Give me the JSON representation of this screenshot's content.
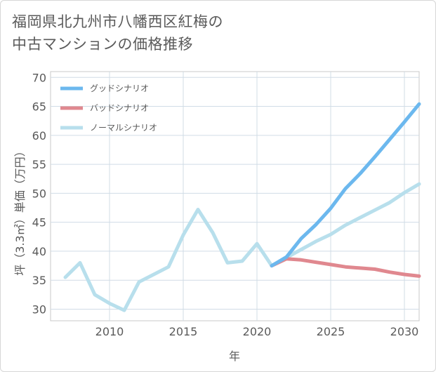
{
  "chart_data": {
    "type": "line",
    "title_lines": [
      "福岡県北九州市八幡西区紅梅の",
      "中古マンションの価格推移"
    ],
    "xlabel": "年",
    "ylabel": "坪（3.3㎡）単価（万円）",
    "xlim": [
      2006,
      2031
    ],
    "ylim": [
      28,
      71
    ],
    "xticks": [
      2010,
      2015,
      2020,
      2025,
      2030
    ],
    "yticks": [
      30,
      35,
      40,
      45,
      50,
      55,
      60,
      65,
      70
    ],
    "grid": true,
    "legend_position": "top-left",
    "series": [
      {
        "name": "グッドシナリオ",
        "color": "#6cb8ee",
        "x": [
          2021,
          2022,
          2023,
          2024,
          2025,
          2026,
          2027,
          2028,
          2029,
          2030,
          2031
        ],
        "y": [
          37.5,
          39.0,
          42.2,
          44.6,
          47.4,
          50.8,
          53.4,
          56.3,
          59.3,
          62.3,
          65.4
        ]
      },
      {
        "name": "バッドシナリオ",
        "color": "#e0888f",
        "x": [
          2021,
          2022,
          2023,
          2024,
          2025,
          2026,
          2027,
          2028,
          2029,
          2030,
          2031
        ],
        "y": [
          37.5,
          38.7,
          38.5,
          38.1,
          37.7,
          37.3,
          37.1,
          36.9,
          36.4,
          36.0,
          35.7
        ]
      },
      {
        "name": "ノーマルシナリオ",
        "color": "#b8dfec",
        "x": [
          2007,
          2008,
          2009,
          2010,
          2011,
          2012,
          2013,
          2014,
          2015,
          2016,
          2017,
          2018,
          2019,
          2020,
          2021,
          2022,
          2023,
          2024,
          2025,
          2026,
          2027,
          2028,
          2029,
          2030,
          2031
        ],
        "y": [
          35.5,
          38.0,
          32.5,
          31.0,
          29.8,
          34.7,
          36.0,
          37.3,
          42.8,
          47.2,
          43.2,
          38.0,
          38.3,
          41.3,
          37.5,
          38.9,
          40.3,
          41.7,
          42.9,
          44.5,
          45.8,
          47.1,
          48.4,
          50.1,
          51.6
        ]
      }
    ]
  }
}
